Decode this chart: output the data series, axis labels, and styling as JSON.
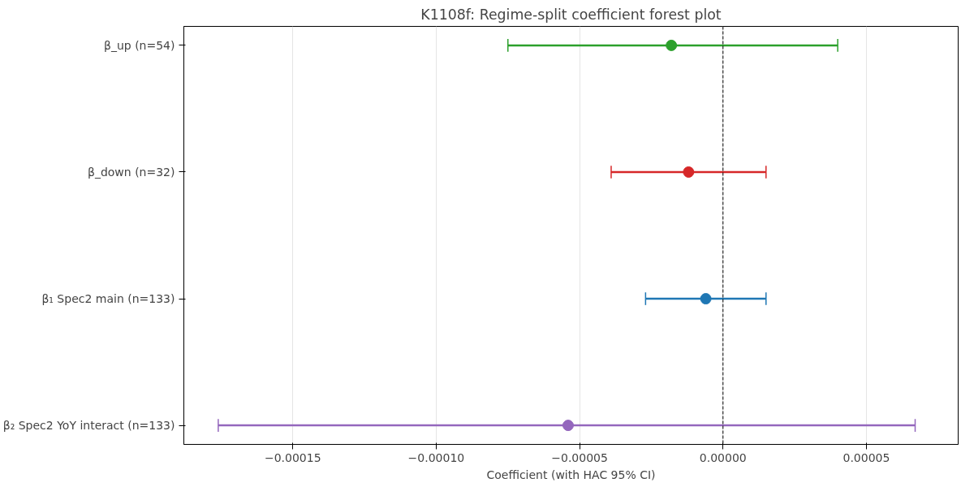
{
  "chart_data": {
    "type": "scatter",
    "orientation": "horizontal",
    "title": "K1108f: Regime-split coefficient forest plot",
    "xlabel": "Coefficient (with HAC 95% CI)",
    "categories": [
      "β_up (n=54)",
      "β_down (n=32)",
      "β₁ Spec2 main (n=133)",
      "β₂ Spec2 YoY interact (n=133)"
    ],
    "values": [
      -1.8e-05,
      -1.2e-05,
      -6e-06,
      -5.4e-05
    ],
    "errors": [
      [
        -7.5e-05,
        4e-05
      ],
      [
        -3.9e-05,
        1.5e-05
      ],
      [
        -2.7e-05,
        1.5e-05
      ],
      [
        -0.000176,
        6.7e-05
      ]
    ],
    "colors": [
      "#2ca02c",
      "#d62728",
      "#1f77b4",
      "#9467bd"
    ],
    "xlim": [
      -0.000188,
      8.2e-05
    ],
    "xticks": [
      {
        "value": -0.00015,
        "label": "−0.00015"
      },
      {
        "value": -0.0001,
        "label": "−0.00010"
      },
      {
        "value": -5e-05,
        "label": "−0.00005"
      },
      {
        "value": 0,
        "label": "0.00000"
      },
      {
        "value": 5e-05,
        "label": "0.00005"
      }
    ],
    "ref_lines": [
      {
        "axis": "x",
        "value": 0,
        "color": "#000000",
        "line_style": "dashed"
      }
    ],
    "grid": "x",
    "marker": "circle"
  }
}
